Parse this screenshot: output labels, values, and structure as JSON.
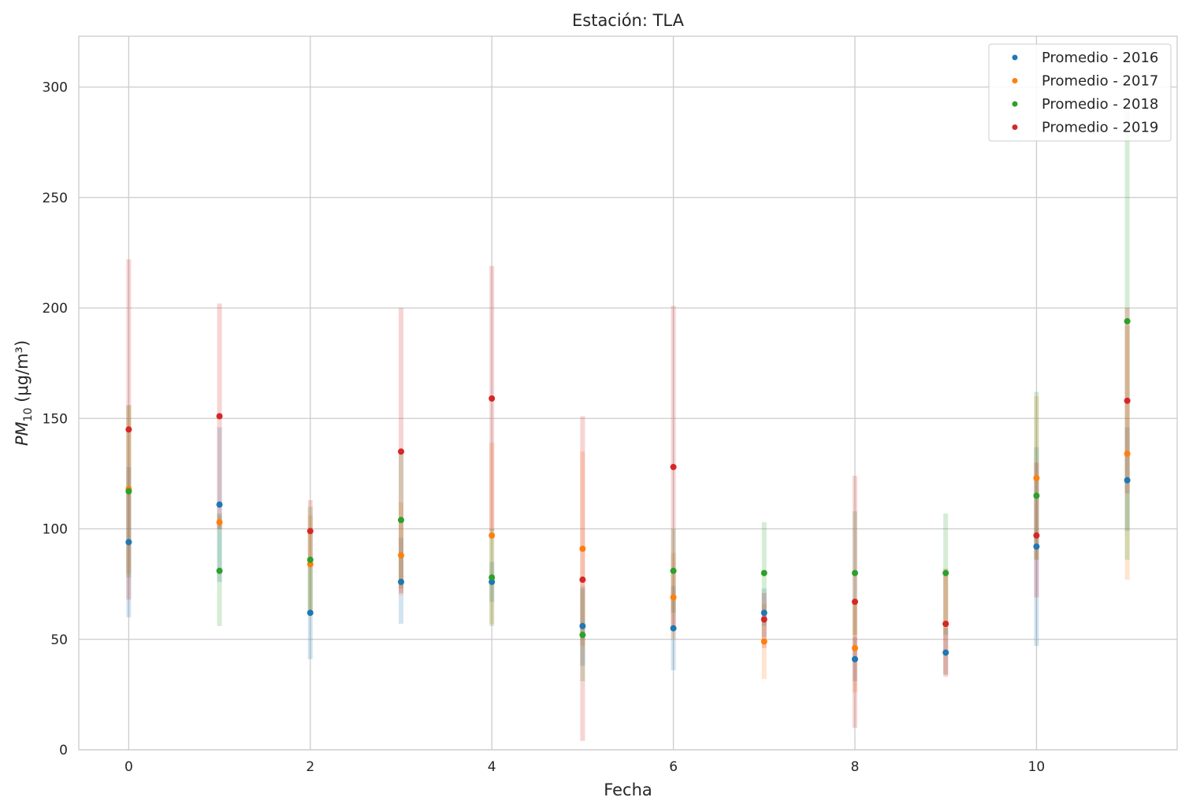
{
  "chart_data": {
    "type": "scatter",
    "title": "Estación: TLA",
    "xlabel": "Fecha",
    "ylabel_main": "PM",
    "ylabel_sub": "10",
    "ylabel_units": " (μg/m³)",
    "xlim": [
      -0.55,
      11.55
    ],
    "ylim": [
      0,
      323
    ],
    "xticks": [
      0,
      2,
      4,
      6,
      8,
      10
    ],
    "yticks": [
      0,
      50,
      100,
      150,
      200,
      250,
      300
    ],
    "grid": true,
    "legend_position": "top-right",
    "x": [
      0,
      1,
      2,
      3,
      4,
      5,
      6,
      7,
      8,
      9,
      10,
      11
    ],
    "series": [
      {
        "name": "Promedio - 2016",
        "color": "#1f77b4",
        "values": [
          94,
          111,
          62,
          76,
          76,
          56,
          55,
          62,
          41,
          44,
          92,
          122
        ],
        "lower": [
          60,
          76,
          41,
          57,
          67,
          38,
          36,
          51,
          31,
          34,
          47,
          99
        ],
        "upper": [
          128,
          146,
          83,
          96,
          85,
          74,
          74,
          73,
          51,
          55,
          137,
          146
        ]
      },
      {
        "name": "Promedio - 2017",
        "color": "#ff7f0e",
        "values": [
          118,
          103,
          84,
          88,
          97,
          91,
          69,
          49,
          46,
          57,
          123,
          134
        ],
        "lower": [
          80,
          100,
          62,
          70,
          57,
          47,
          50,
          32,
          26,
          34,
          86,
          77
        ],
        "upper": [
          156,
          106,
          106,
          112,
          139,
          135,
          89,
          66,
          66,
          80,
          160,
          192
        ]
      },
      {
        "name": "Promedio - 2018",
        "color": "#2ca02c",
        "values": [
          117,
          81,
          86,
          104,
          78,
          52,
          81,
          80,
          80,
          80,
          115,
          194
        ],
        "lower": [
          78,
          56,
          62,
          73,
          56,
          31,
          62,
          56,
          52,
          52,
          86,
          86
        ],
        "upper": [
          156,
          107,
          110,
          135,
          100,
          73,
          100,
          103,
          108,
          107,
          162,
          292
        ]
      },
      {
        "name": "Promedio - 2019",
        "color": "#d62728",
        "values": [
          145,
          151,
          99,
          135,
          159,
          77,
          128,
          59,
          67,
          57,
          97,
          158
        ],
        "lower": [
          68,
          100,
          86,
          71,
          99,
          4,
          56,
          46,
          10,
          33,
          69,
          116
        ],
        "upper": [
          222,
          202,
          113,
          200,
          219,
          151,
          201,
          71,
          124,
          82,
          130,
          200
        ]
      }
    ]
  }
}
